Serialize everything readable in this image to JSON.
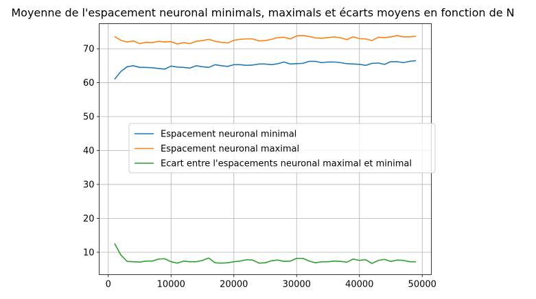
{
  "chart_data": {
    "type": "line",
    "title": "Moyenne de l'espacement neuronal minimals, maximals et écarts moyens en fonction de N",
    "xlabel": "",
    "ylabel": "",
    "xlim": [
      -1450,
      51450
    ],
    "ylim": [
      3.4,
      77.4
    ],
    "xticks": [
      0,
      10000,
      20000,
      30000,
      40000,
      50000
    ],
    "yticks": [
      10,
      20,
      30,
      40,
      50,
      60,
      70
    ],
    "grid": true,
    "legend_position": "center",
    "x": [
      1000,
      2000,
      3000,
      4000,
      5000,
      6000,
      7000,
      8000,
      9000,
      10000,
      11000,
      12000,
      13000,
      14000,
      15000,
      16000,
      17000,
      18000,
      19000,
      20000,
      21000,
      22000,
      23000,
      24000,
      25000,
      26000,
      27000,
      28000,
      29000,
      30000,
      31000,
      32000,
      33000,
      34000,
      35000,
      36000,
      37000,
      38000,
      39000,
      40000,
      41000,
      42000,
      43000,
      44000,
      45000,
      46000,
      47000,
      48000,
      49000
    ],
    "series": [
      {
        "name": "Espacement neuronal minimal",
        "color": "#1f77b4",
        "values": [
          61.0,
          63.3,
          64.7,
          65.0,
          64.5,
          64.5,
          64.4,
          64.2,
          64.0,
          64.9,
          64.6,
          64.5,
          64.3,
          65.0,
          64.7,
          64.5,
          65.3,
          65.0,
          64.8,
          65.3,
          65.3,
          65.1,
          65.2,
          65.5,
          65.5,
          65.3,
          65.6,
          66.1,
          65.5,
          65.6,
          65.7,
          66.3,
          66.3,
          65.9,
          66.1,
          66.1,
          65.9,
          65.6,
          65.5,
          65.4,
          65.1,
          65.7,
          65.8,
          65.4,
          66.2,
          66.2,
          65.9,
          66.3,
          66.5
        ]
      },
      {
        "name": "Espacement neuronal maximal",
        "color": "#ff7f0e",
        "values": [
          73.6,
          72.5,
          72.0,
          72.3,
          71.5,
          71.9,
          71.8,
          72.2,
          72.0,
          72.1,
          71.4,
          71.8,
          71.5,
          72.2,
          72.4,
          72.8,
          72.2,
          71.9,
          71.7,
          72.5,
          72.8,
          72.9,
          72.9,
          72.3,
          72.4,
          72.8,
          73.3,
          73.4,
          72.9,
          73.8,
          73.9,
          73.6,
          73.2,
          73.1,
          73.3,
          73.5,
          73.2,
          72.7,
          73.5,
          73.0,
          72.9,
          72.4,
          73.4,
          73.3,
          73.5,
          73.9,
          73.5,
          73.5,
          73.7
        ]
      },
      {
        "name": "Ecart entre l'espacements neuronal maximal et minimal",
        "color": "#2ca02c",
        "values": [
          12.6,
          9.2,
          7.3,
          7.2,
          7.1,
          7.4,
          7.4,
          8.0,
          8.1,
          7.2,
          6.8,
          7.4,
          7.2,
          7.2,
          7.6,
          8.3,
          6.9,
          6.8,
          6.9,
          7.2,
          7.4,
          7.8,
          7.7,
          6.8,
          6.9,
          7.5,
          7.7,
          7.3,
          7.4,
          8.2,
          8.2,
          7.4,
          6.9,
          7.2,
          7.2,
          7.4,
          7.3,
          7.1,
          8.0,
          7.6,
          7.8,
          6.7,
          7.6,
          7.9,
          7.3,
          7.7,
          7.6,
          7.2,
          7.2
        ]
      }
    ]
  }
}
